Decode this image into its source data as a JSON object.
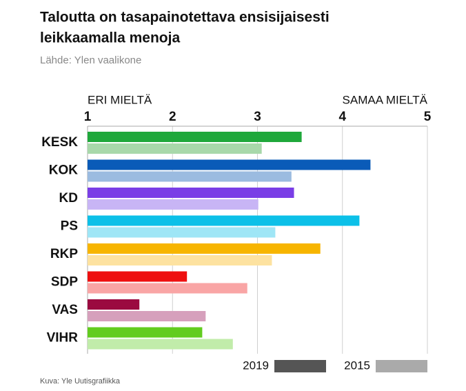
{
  "chart_data": {
    "type": "bar",
    "title": [
      "Taloutta on tasapainotettava ensisijaisesti",
      "leikkaamalla menoja"
    ],
    "subtitle": "Lähde: Ylen vaalikone",
    "annotations": [
      "ERI MIELTÄ",
      "SAMAA MIELTÄ"
    ],
    "source": "Kuva: Yle Uutisgrafiikka",
    "categories": [
      "KESK",
      "KOK",
      "KD",
      "PS",
      "RKP",
      "SDP",
      "VAS",
      "VIHR"
    ],
    "series": [
      {
        "name": "2019",
        "color": "#555555",
        "colors": [
          "#1fa83b",
          "#0a5bb8",
          "#7a3ee6",
          "#0cc0e8",
          "#f7b500",
          "#ee0f0f",
          "#9b0a40",
          "#62cc1f"
        ],
        "values": [
          3.52,
          4.33,
          3.43,
          4.2,
          3.74,
          2.17,
          1.61,
          2.35
        ]
      },
      {
        "name": "2015",
        "color": "#aaaaaa",
        "colors": [
          "#a8d8aa",
          "#9bbbe0",
          "#c8b5f5",
          "#9fe6f6",
          "#fde2a0",
          "#f9a5a5",
          "#d6a0bc",
          "#c1ecaa"
        ],
        "values": [
          3.05,
          3.4,
          3.01,
          3.21,
          3.17,
          2.88,
          2.39,
          2.71
        ]
      }
    ],
    "xlim": [
      1,
      5
    ],
    "xticks": [
      1,
      2,
      3,
      4,
      5
    ],
    "grid": true,
    "orientation": "horizontal"
  }
}
